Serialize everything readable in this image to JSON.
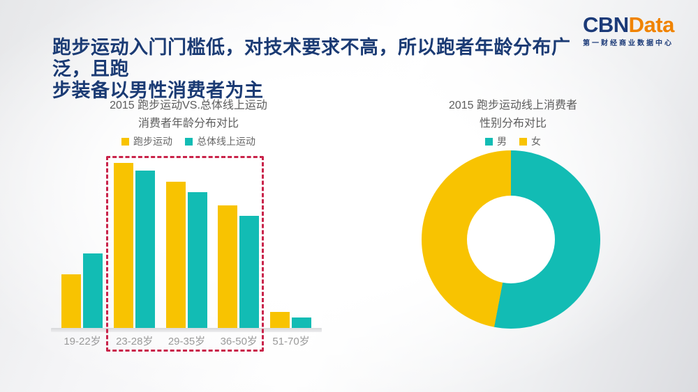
{
  "header": {
    "title_line1": "跑步运动入门门槛低，对技术要求不高，所以跑者年龄分布广泛，且跑",
    "title_line2": "步装备以男性消费者为主",
    "title_color": "#1B3B74"
  },
  "logo": {
    "part1": "CBN",
    "part2": "Data",
    "part1_color": "#1B3A78",
    "part2_color": "#F08300",
    "subtitle": "第一财经商业数据中心"
  },
  "colors": {
    "runner_yellow": "#F8C301",
    "overall_teal": "#12BCB4",
    "highlight_red": "#C9234A",
    "axis_label_gray": "#9A9A9A"
  },
  "chart_data": [
    {
      "type": "bar",
      "title_line1": "2015 跑步运动VS.总体线上运动",
      "title_line2": "消费者年龄分布对比",
      "categories": [
        "19-22岁",
        "23-28岁",
        "29-35岁",
        "36-50岁",
        "51-70岁"
      ],
      "series": [
        {
          "name": "跑步运动",
          "color": "#F8C301",
          "values": [
            10,
            31,
            27.5,
            23,
            3
          ]
        },
        {
          "name": "总体线上运动",
          "color": "#12BCB4",
          "values": [
            14,
            29.5,
            25.5,
            21,
            2
          ]
        }
      ],
      "ylim": [
        0,
        32
      ],
      "value_labels_shown": false,
      "legend_position": "top",
      "grid": false,
      "highlight_box": {
        "categories": [
          "23-28岁",
          "29-35岁",
          "36-50岁"
        ],
        "color": "#C9234A",
        "style": "dashed"
      }
    },
    {
      "type": "pie",
      "donut": true,
      "title_line1": "2015 跑步运动线上消费者",
      "title_line2": "性别分布对比",
      "start_angle_deg": 0,
      "slices": [
        {
          "label": "男",
          "color": "#12BCB4",
          "value_pct": 53
        },
        {
          "label": "女",
          "color": "#F8C301",
          "value_pct": 47
        }
      ],
      "legend_position": "top"
    }
  ]
}
